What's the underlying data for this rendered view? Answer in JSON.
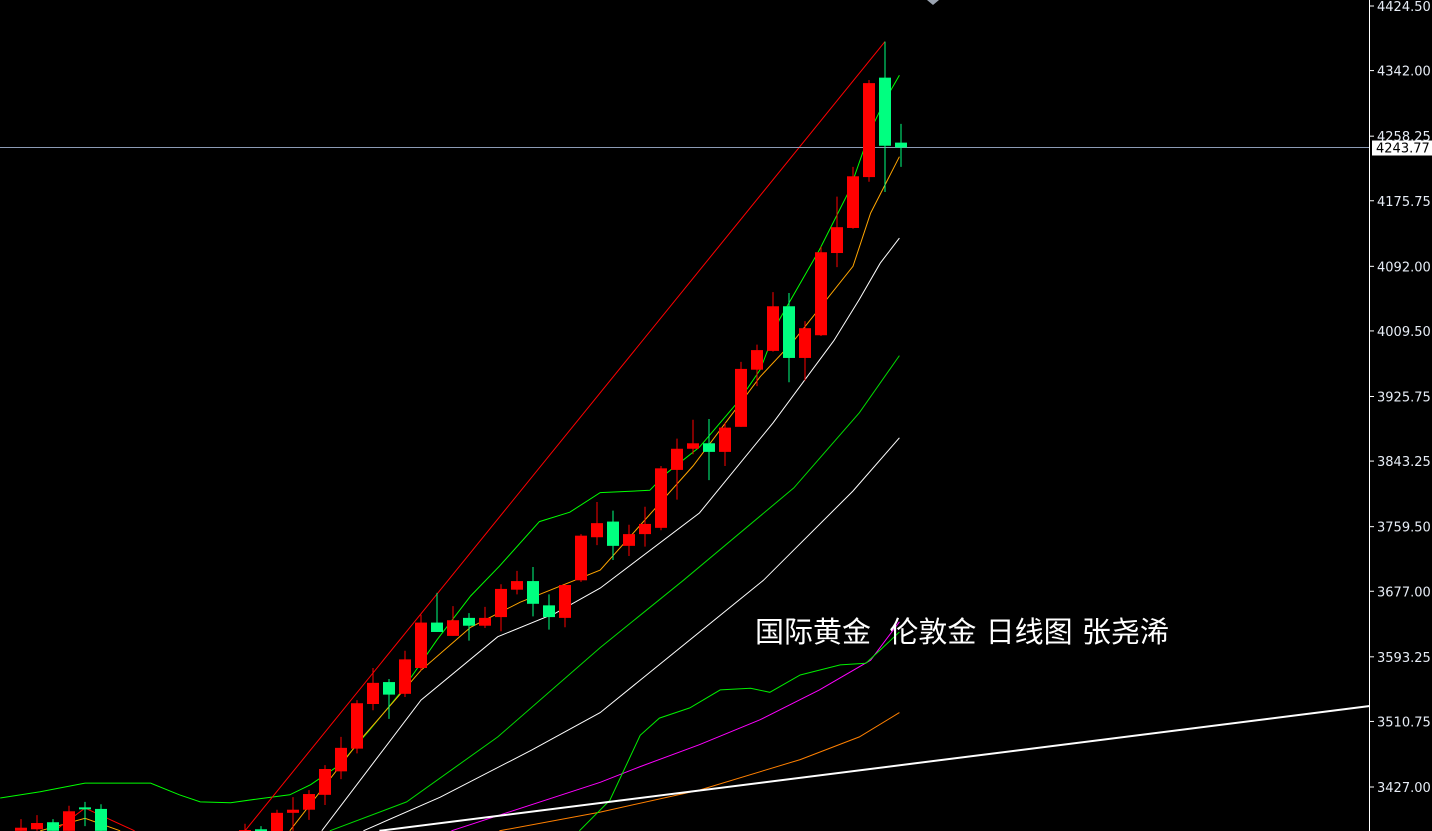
{
  "watermark_text": "国际黄金  伦敦金 日线图 张尧浠",
  "chart_data": {
    "type": "candlestick",
    "title": "",
    "xlabel": "",
    "ylabel": "",
    "ylim": [
      3370.8,
      4424.5
    ],
    "y_ticks": [
      "4424.50",
      "4342.00",
      "4258.25",
      "4175.75",
      "4092.00",
      "4009.50",
      "3925.75",
      "3843.25",
      "3759.50",
      "3677.00",
      "3593.25",
      "3510.75",
      "3427.00"
    ],
    "current_price": "4243.77",
    "up_color": "#ff0000",
    "down_color": "#00ff80",
    "grid": false,
    "candles_ohlc": [
      [
        3371,
        3386,
        3371,
        3375
      ],
      [
        3373,
        3391,
        3371,
        3381
      ],
      [
        3382,
        3386,
        3371,
        3371
      ],
      [
        3371,
        3403,
        3371,
        3396
      ],
      [
        3401,
        3408,
        3377,
        3399
      ],
      [
        3399,
        3405,
        3371,
        3371
      ],
      null,
      null,
      null,
      null,
      null,
      null,
      null,
      null,
      [
        3368,
        3380,
        3362,
        3372
      ],
      [
        3373,
        3377,
        3360,
        3367
      ],
      [
        3365,
        3398,
        3360,
        3394
      ],
      [
        3394,
        3414,
        3371,
        3398
      ],
      [
        3398,
        3423,
        3385,
        3418
      ],
      [
        3417,
        3455,
        3404,
        3450
      ],
      [
        3447,
        3491,
        3437,
        3477
      ],
      [
        3476,
        3538,
        3470,
        3534
      ],
      [
        3533,
        3579,
        3525,
        3560
      ],
      [
        3561,
        3565,
        3514,
        3545
      ],
      [
        3546,
        3601,
        3542,
        3590
      ],
      [
        3579,
        3647,
        3576,
        3637
      ],
      [
        3637,
        3675,
        3625,
        3625
      ],
      [
        3620,
        3658,
        3620,
        3640
      ],
      [
        3643,
        3649,
        3614,
        3633
      ],
      [
        3633,
        3657,
        3630,
        3643
      ],
      [
        3644,
        3686,
        3626,
        3680
      ],
      [
        3679,
        3703,
        3673,
        3690
      ],
      [
        3690,
        3708,
        3645,
        3661
      ],
      [
        3659,
        3673,
        3628,
        3644
      ],
      [
        3643,
        3686,
        3631,
        3685
      ],
      [
        3691,
        3750,
        3689,
        3748
      ],
      [
        3746,
        3791,
        3736,
        3764
      ],
      [
        3766,
        3780,
        3717,
        3735
      ],
      [
        3735,
        3762,
        3722,
        3750
      ],
      [
        3750,
        3785,
        3734,
        3763
      ],
      [
        3758,
        3837,
        3755,
        3834
      ],
      [
        3832,
        3872,
        3794,
        3859
      ],
      [
        3859,
        3896,
        3852,
        3866
      ],
      [
        3866,
        3897,
        3819,
        3855
      ],
      [
        3855,
        3892,
        3837,
        3886
      ],
      [
        3887,
        3970,
        3887,
        3961
      ],
      [
        3960,
        3992,
        3939,
        3985
      ],
      [
        3984,
        4059,
        3983,
        4041
      ],
      [
        4041,
        4058,
        3944,
        3975
      ],
      [
        3975,
        4022,
        3946,
        4013
      ],
      [
        4004,
        4117,
        4003,
        4110
      ],
      [
        4109,
        4181,
        4091,
        4142
      ],
      [
        4141,
        4219,
        4140,
        4207
      ],
      [
        4206,
        4330,
        4200,
        4326
      ],
      [
        4333,
        4379,
        4187,
        4246
      ],
      [
        4250,
        4274,
        4219,
        4243.77
      ]
    ],
    "lines": [
      {
        "color": "#00ff00",
        "points": [
          [
            -1.3,
            3413
          ],
          [
            1.2,
            3421
          ],
          [
            4.0,
            3432
          ],
          [
            8.1,
            3432
          ],
          [
            9.9,
            3417
          ],
          [
            11.2,
            3408
          ],
          [
            13.1,
            3407
          ],
          [
            14.9,
            3412
          ],
          [
            16.8,
            3417
          ],
          [
            18.1,
            3430
          ],
          [
            19.9,
            3455
          ],
          [
            21.8,
            3500
          ],
          [
            23.7,
            3547
          ],
          [
            26.0,
            3615
          ],
          [
            28.1,
            3671
          ],
          [
            29.9,
            3709
          ],
          [
            32.4,
            3766
          ],
          [
            34.3,
            3778
          ],
          [
            36.2,
            3803
          ],
          [
            39.3,
            3806
          ],
          [
            40.3,
            3827
          ],
          [
            42.4,
            3861
          ],
          [
            44.9,
            3921
          ],
          [
            46.2,
            3960
          ],
          [
            47.4,
            4024
          ],
          [
            49.9,
            4113
          ],
          [
            51.8,
            4190
          ],
          [
            53.1,
            4266
          ],
          [
            54.0,
            4304
          ],
          [
            54.9,
            4336
          ]
        ]
      },
      {
        "color": "#ffa500",
        "points": [
          [
            16.8,
            3371
          ],
          [
            21.2,
            3487
          ],
          [
            25.0,
            3576
          ],
          [
            28.1,
            3631
          ],
          [
            31.2,
            3663
          ],
          [
            36.2,
            3704
          ],
          [
            42.0,
            3837
          ],
          [
            46.2,
            3951
          ],
          [
            48.3,
            3997
          ],
          [
            52.0,
            4092
          ],
          [
            53.1,
            4160
          ],
          [
            54.9,
            4232
          ]
        ]
      },
      {
        "color": "#ffa500",
        "points": [
          [
            1.2,
            3371
          ],
          [
            4.0,
            3387
          ],
          [
            6.2,
            3371
          ]
        ]
      },
      {
        "color": "#ffffff",
        "points": [
          [
            18.8,
            3371
          ],
          [
            25.0,
            3538
          ],
          [
            29.8,
            3619
          ],
          [
            33.4,
            3649
          ],
          [
            36.2,
            3681
          ],
          [
            42.4,
            3777
          ],
          [
            47.0,
            3892
          ],
          [
            50.8,
            3997
          ],
          [
            52.4,
            4050
          ],
          [
            53.7,
            4096
          ],
          [
            54.9,
            4128
          ]
        ]
      },
      {
        "color": "#00dd00",
        "points": [
          [
            19.3,
            3371
          ],
          [
            24.1,
            3408
          ],
          [
            29.8,
            3491
          ],
          [
            36.2,
            3605
          ],
          [
            41.4,
            3691
          ],
          [
            48.3,
            3809
          ],
          [
            52.4,
            3905
          ],
          [
            54.9,
            3978
          ]
        ]
      },
      {
        "color": "#ffffff",
        "points": [
          [
            21.4,
            3371
          ],
          [
            26.2,
            3414
          ],
          [
            31.9,
            3474
          ],
          [
            36.2,
            3522
          ],
          [
            46.4,
            3691
          ],
          [
            52.0,
            3805
          ],
          [
            54.9,
            3873
          ]
        ]
      },
      {
        "color": "#ff00ff",
        "points": [
          [
            26.9,
            3371
          ],
          [
            36.2,
            3433
          ],
          [
            38.7,
            3453
          ],
          [
            42.4,
            3481
          ],
          [
            46.2,
            3513
          ],
          [
            49.9,
            3551
          ],
          [
            53.1,
            3589
          ],
          [
            54.9,
            3638
          ]
        ]
      },
      {
        "color": "#ff8000",
        "points": [
          [
            29.9,
            3371
          ],
          [
            36.2,
            3395
          ],
          [
            42.4,
            3423
          ],
          [
            48.7,
            3462
          ],
          [
            52.4,
            3491
          ],
          [
            54.9,
            3522
          ]
        ]
      },
      {
        "color": "#00ee00",
        "points": [
          [
            34.9,
            3371
          ],
          [
            36.8,
            3410
          ],
          [
            38.7,
            3493
          ],
          [
            39.9,
            3515
          ],
          [
            41.8,
            3528
          ],
          [
            43.7,
            3551
          ],
          [
            45.6,
            3553
          ],
          [
            46.8,
            3548
          ],
          [
            48.7,
            3570
          ],
          [
            51.2,
            3583
          ],
          [
            52.8,
            3585
          ],
          [
            53.7,
            3602
          ],
          [
            54.9,
            3625
          ]
        ]
      },
      {
        "color": "#ff0000",
        "points": [
          [
            14.0,
            3371
          ],
          [
            54.0,
            4379
          ]
        ]
      },
      {
        "color": "#ff0000",
        "points": [
          [
            2.1,
            3371
          ],
          [
            4.0,
            3400
          ],
          [
            7.1,
            3371
          ]
        ]
      },
      {
        "color": "#ffffff",
        "width": 2,
        "points": [
          [
            22.4,
            3371
          ],
          [
            84.3,
            3530.5
          ]
        ]
      }
    ]
  }
}
